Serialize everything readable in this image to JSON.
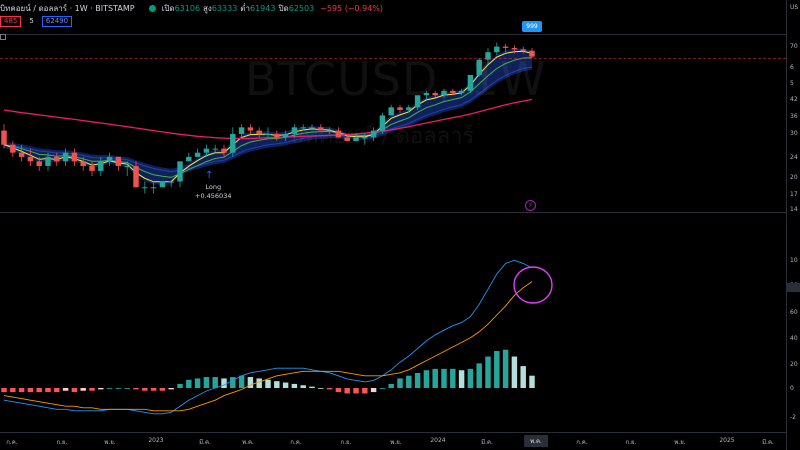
{
  "header": {
    "symbol_text": "บิทคอยน์ / ดอลลาร์ · 1W · BITSTAMP",
    "open_label": "เปิด",
    "open_value": "63106",
    "high_label": "สูง",
    "high_value": "63333",
    "low_label": "ต่ำ",
    "low_value": "61943",
    "close_label": "ปิด",
    "close_value": "62503",
    "change_value": "−595 (−0.94%)"
  },
  "quote": {
    "bid": "485",
    "spread": "5",
    "ask": "62490"
  },
  "watermark": {
    "symbol": "BTCUSD, 1W",
    "description": "บิทคอยน์ / ดอลลาร์"
  },
  "annotations": {
    "long_label": "Long",
    "long_value": "+0.456034",
    "bubble_text": "999"
  },
  "price_axis": [
    "US",
    "70",
    "6",
    "5",
    "42",
    "36",
    "30",
    "24",
    "20",
    "17",
    "14"
  ],
  "indicator_axis": [
    "10",
    "80",
    "60",
    "40",
    "20",
    "0",
    "-2"
  ],
  "time_axis": [
    "ก.ค.",
    "ก.ย.",
    "พ.ย.",
    "2023",
    "มี.ค.",
    "พ.ค.",
    "ก.ค.",
    "ก.ย.",
    "พ.ย.",
    "2024",
    "มี.ค.",
    "พ.ค.",
    "ก.ค.",
    "ก.ย.",
    "พ.ย.",
    "2025",
    "มี.ค."
  ],
  "highlighted_time": "พ.ค.",
  "colors": {
    "up": "#26a69a",
    "down": "#ef5350",
    "yellow": "#ffeb3b",
    "blue_line": "#2962ff",
    "ma_long": "#e91e63",
    "macd": "#2196f3",
    "signal": "#ff9800",
    "circle": "#e040fb"
  },
  "chart_data": {
    "type": "line",
    "candles": [
      [
        29,
        31,
        24,
        25
      ],
      [
        25,
        26,
        22,
        23
      ],
      [
        23,
        25,
        21,
        22
      ],
      [
        22,
        24,
        20,
        21
      ],
      [
        21,
        22,
        19,
        20
      ],
      [
        20,
        23,
        19,
        22
      ],
      [
        22,
        23,
        20,
        21
      ],
      [
        21,
        24,
        20,
        23
      ],
      [
        23,
        24,
        20,
        21
      ],
      [
        21,
        22,
        19,
        20
      ],
      [
        20,
        21,
        18,
        19
      ],
      [
        19,
        22,
        18,
        21
      ],
      [
        21,
        23,
        20,
        22
      ],
      [
        22,
        22,
        19,
        20
      ],
      [
        20,
        21,
        18,
        20
      ],
      [
        20,
        21,
        16,
        16
      ],
      [
        16,
        17,
        15,
        16
      ],
      [
        16,
        17,
        15,
        16
      ],
      [
        16,
        17,
        16,
        17
      ],
      [
        17,
        17,
        16,
        17
      ],
      [
        17,
        21,
        16,
        21
      ],
      [
        21,
        23,
        21,
        22
      ],
      [
        22,
        24,
        22,
        23
      ],
      [
        23,
        25,
        22,
        24
      ],
      [
        24,
        25,
        23,
        24
      ],
      [
        24,
        25,
        22,
        23
      ],
      [
        23,
        30,
        22,
        28
      ],
      [
        28,
        31,
        27,
        30
      ],
      [
        30,
        31,
        28,
        29
      ],
      [
        29,
        30,
        27,
        28
      ],
      [
        28,
        30,
        27,
        28
      ],
      [
        28,
        29,
        26,
        27
      ],
      [
        27,
        29,
        26,
        28
      ],
      [
        28,
        31,
        27,
        30
      ],
      [
        30,
        31,
        29,
        30
      ],
      [
        30,
        31,
        29,
        30
      ],
      [
        30,
        31,
        29,
        29
      ],
      [
        29,
        30,
        28,
        29
      ],
      [
        29,
        30,
        27,
        27
      ],
      [
        27,
        28,
        26,
        26
      ],
      [
        26,
        28,
        26,
        27
      ],
      [
        27,
        28,
        25,
        27
      ],
      [
        27,
        30,
        26,
        29
      ],
      [
        29,
        35,
        28,
        34
      ],
      [
        34,
        38,
        34,
        37
      ],
      [
        37,
        38,
        35,
        36
      ],
      [
        36,
        38,
        35,
        37
      ],
      [
        37,
        42,
        36,
        42
      ],
      [
        42,
        44,
        40,
        43
      ],
      [
        43,
        44,
        41,
        42
      ],
      [
        42,
        45,
        41,
        44
      ],
      [
        44,
        45,
        42,
        43
      ],
      [
        43,
        45,
        42,
        44
      ],
      [
        44,
        52,
        43,
        52
      ],
      [
        52,
        62,
        51,
        61
      ],
      [
        61,
        69,
        58,
        66
      ],
      [
        66,
        73,
        64,
        70
      ],
      [
        70,
        72,
        66,
        69
      ],
      [
        69,
        71,
        65,
        68
      ],
      [
        68,
        70,
        65,
        67
      ],
      [
        67,
        69,
        62,
        63
      ]
    ],
    "macd": [
      -8,
      -9,
      -10,
      -11,
      -12,
      -13,
      -14,
      -14,
      -15,
      -15,
      -15,
      -15,
      -14,
      -14,
      -14,
      -15,
      -16,
      -17,
      -17,
      -16,
      -12,
      -8,
      -5,
      -2,
      0,
      2,
      5,
      8,
      10,
      11,
      12,
      13,
      13,
      13,
      13,
      12,
      11,
      10,
      8,
      6,
      5,
      4,
      5,
      8,
      12,
      17,
      21,
      26,
      31,
      35,
      38,
      41,
      43,
      47,
      55,
      65,
      75,
      82,
      84,
      82,
      79
    ],
    "signal": [
      -5,
      -6,
      -7,
      -8,
      -9,
      -10,
      -11,
      -12,
      -12,
      -13,
      -13,
      -14,
      -14,
      -14,
      -14,
      -14,
      -14,
      -15,
      -15,
      -15,
      -15,
      -14,
      -12,
      -10,
      -8,
      -5,
      -3,
      -1,
      2,
      4,
      6,
      8,
      9,
      10,
      11,
      11,
      11,
      11,
      11,
      10,
      9,
      8,
      8,
      8,
      9,
      10,
      12,
      15,
      18,
      21,
      24,
      27,
      30,
      33,
      37,
      42,
      48,
      54,
      61,
      66,
      70
    ],
    "ma_long": [
      36,
      35.5,
      35,
      34.6,
      34.2,
      33.8,
      33.4,
      33,
      32.6,
      32.2,
      31.8,
      31.4,
      31,
      30.6,
      30.2,
      29.8,
      29.4,
      29,
      28.6,
      28.2,
      27.9,
      27.6,
      27.3,
      27.1,
      26.9,
      26.8,
      26.7,
      26.7,
      26.7,
      26.8,
      26.9,
      27,
      27.1,
      27.2,
      27.3,
      27.4,
      27.5,
      27.6,
      27.7,
      27.8,
      28,
      28.2,
      28.5,
      28.8,
      29.2,
      29.7,
      30.2,
      30.8,
      31.4,
      32,
      32.6,
      33.2,
      33.8,
      34.5,
      35.3,
      36.2,
      37.1,
      38,
      38.8,
      39.5,
      40.2
    ],
    "ylim": [
      14,
      75
    ]
  }
}
